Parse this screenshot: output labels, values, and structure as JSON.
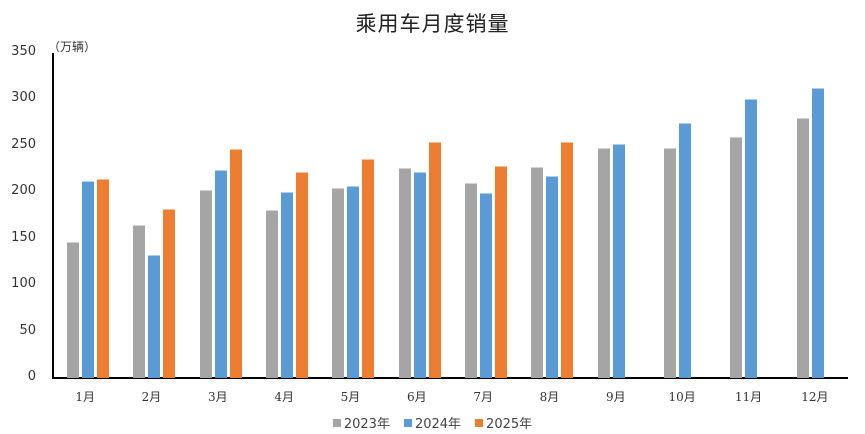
{
  "chart_data": {
    "type": "bar",
    "title": "乘用车月度销量",
    "ylabel": "（万辆）",
    "xlabel": "",
    "ylim": [
      0,
      350
    ],
    "yticks": [
      0,
      50,
      100,
      150,
      200,
      250,
      300,
      350
    ],
    "grid": false,
    "legend_position": "bottom",
    "categories": [
      "1月",
      "2月",
      "3月",
      "4月",
      "5月",
      "6月",
      "7月",
      "8月",
      "9月",
      "10月",
      "11月",
      "12月"
    ],
    "series": [
      {
        "name": "2023年",
        "color": "#A5A5A5",
        "values": [
          147,
          165,
          202,
          181,
          205,
          226,
          210,
          227,
          248,
          248,
          260,
          280
        ]
      },
      {
        "name": "2024年",
        "color": "#5B9BD5",
        "values": [
          212,
          133,
          224,
          200,
          207,
          222,
          199,
          218,
          252,
          275,
          300,
          312
        ]
      },
      {
        "name": "2025年",
        "color": "#ED7D31",
        "values": [
          214,
          182,
          247,
          222,
          236,
          254,
          228,
          254,
          null,
          null,
          null,
          null
        ]
      }
    ]
  }
}
